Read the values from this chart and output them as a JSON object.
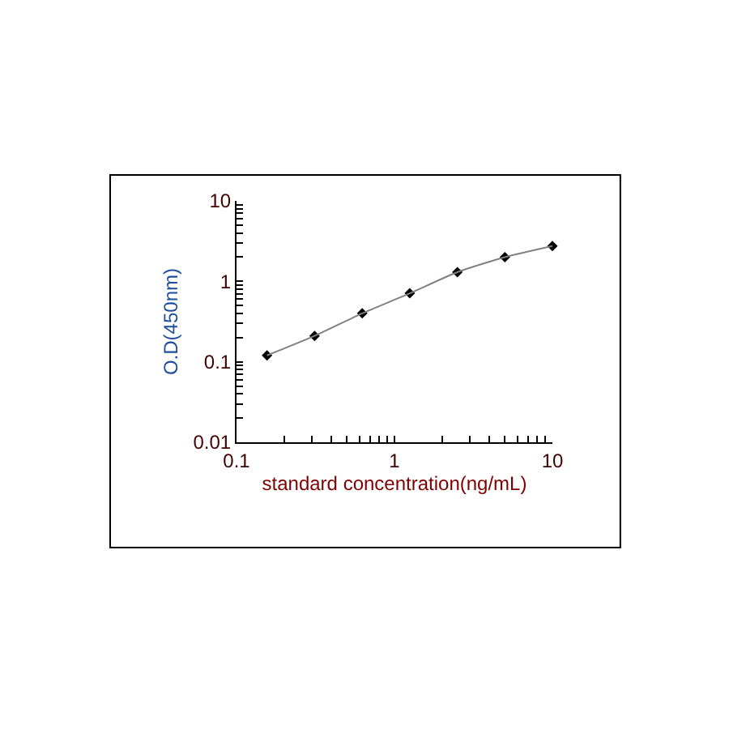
{
  "chart_data": {
    "type": "scatter",
    "xlabel": "standard concentration(ng/mL)",
    "ylabel": "O.D(450nm)",
    "log": "xy",
    "marker": "diamond",
    "series": [
      {
        "color": "#000000",
        "x": [
          0.156,
          0.312,
          0.625,
          1.25,
          2.5,
          5,
          10
        ],
        "values": [
          0.12,
          0.21,
          0.4,
          0.71,
          1.3,
          2.0,
          2.75
        ]
      },
      {
        "type": "line",
        "color": "#808080",
        "x": [
          0.156,
          0.312,
          0.625,
          1.25,
          2.5,
          5,
          10
        ],
        "values": [
          0.12,
          0.21,
          0.4,
          0.71,
          1.3,
          2.0,
          2.75
        ],
        "marker": "none",
        "line_style": "solid"
      }
    ],
    "xlim": [
      0.1,
      10
    ],
    "ylim": [
      0.01,
      10
    ],
    "xticks": [
      {
        "value": 0.1,
        "label": "0.1"
      },
      {
        "value": 0.2,
        "label": null
      },
      {
        "value": 0.3,
        "label": null
      },
      {
        "value": 0.4,
        "label": null
      },
      {
        "value": 0.5,
        "label": null
      },
      {
        "value": 0.6,
        "label": null
      },
      {
        "value": 0.7,
        "label": null
      },
      {
        "value": 0.8,
        "label": null
      },
      {
        "value": 0.9,
        "label": null
      },
      1,
      {
        "value": 2,
        "label": null
      },
      {
        "value": 3,
        "label": null
      },
      {
        "value": 4,
        "label": null
      },
      {
        "value": 5,
        "label": null
      },
      {
        "value": 6,
        "label": null
      },
      {
        "value": 7,
        "label": null
      },
      {
        "value": 8,
        "label": null
      },
      {
        "value": 9,
        "label": null
      },
      10
    ],
    "yticks": [
      {
        "value": 0.01,
        "label": "0.01"
      },
      {
        "value": 0.02,
        "label": null
      },
      {
        "value": 0.03,
        "label": null
      },
      {
        "value": 0.04,
        "label": null
      },
      {
        "value": 0.05,
        "label": null
      },
      {
        "value": 0.06,
        "label": null
      },
      {
        "value": 0.07,
        "label": null
      },
      {
        "value": 0.08,
        "label": null
      },
      {
        "value": 0.09,
        "label": null
      },
      {
        "value": 0.1,
        "label": "0.1"
      },
      {
        "value": 0.2,
        "label": null
      },
      {
        "value": 0.3,
        "label": null
      },
      {
        "value": 0.4,
        "label": null
      },
      {
        "value": 0.5,
        "label": null
      },
      {
        "value": 0.6,
        "label": null
      },
      {
        "value": 0.7,
        "label": null
      },
      {
        "value": 0.8,
        "label": null
      },
      {
        "value": 0.9,
        "label": null
      },
      1,
      {
        "value": 2,
        "label": null
      },
      {
        "value": 3,
        "label": null
      },
      {
        "value": 4,
        "label": null
      },
      {
        "value": 5,
        "label": null
      },
      {
        "value": 6,
        "label": null
      },
      {
        "value": 7,
        "label": null
      },
      {
        "value": 8,
        "label": null
      },
      {
        "value": 9,
        "label": null
      },
      10
    ]
  }
}
